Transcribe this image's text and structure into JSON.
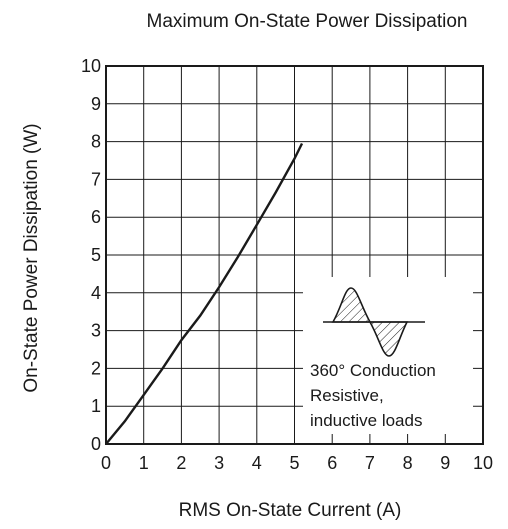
{
  "chart_data": {
    "type": "line",
    "title": "Maximum On-State Power Dissipation",
    "xlabel": "RMS On-State Current  (A)",
    "ylabel": "On-State Power Dissipation  (W)",
    "xlim": [
      0,
      10
    ],
    "ylim": [
      0,
      10
    ],
    "xticks": [
      "0",
      "1",
      "2",
      "3",
      "4",
      "5",
      "6",
      "7",
      "8",
      "9",
      "10"
    ],
    "yticks": [
      "0",
      "1",
      "2",
      "3",
      "4",
      "5",
      "6",
      "7",
      "8",
      "9",
      "10"
    ],
    "grid": true,
    "series": [
      {
        "x": [
          0,
          0.5,
          1.0,
          1.5,
          2.0,
          2.5,
          3.0,
          3.5,
          4.0,
          4.5,
          5.0,
          5.2
        ],
        "y": [
          0,
          0.6,
          1.3,
          2.0,
          2.75,
          3.4,
          4.15,
          4.95,
          5.8,
          6.65,
          7.55,
          7.95
        ]
      }
    ],
    "annotation": {
      "lines": [
        "360° Conduction",
        "Resistive,",
        "inductive loads"
      ],
      "icon": "sine-wave-conduction-icon"
    }
  }
}
